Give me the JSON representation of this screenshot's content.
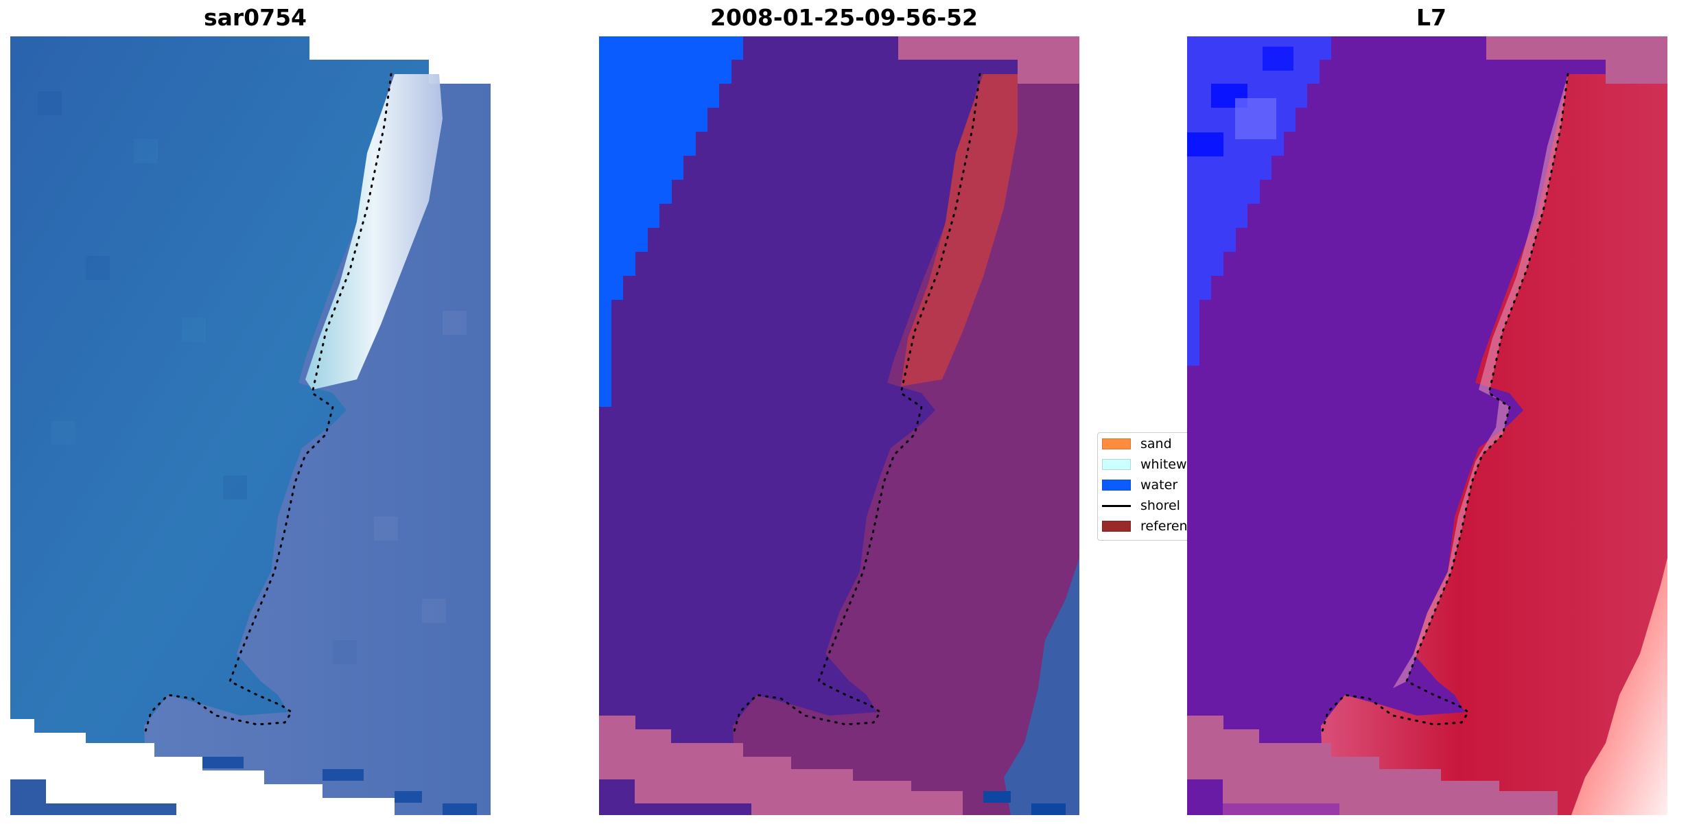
{
  "figure": {
    "panels": [
      {
        "title": "sar0754",
        "kind": "rgb image"
      },
      {
        "title": "2008-01-25-09-56-52",
        "kind": "classified image"
      },
      {
        "title": "L7",
        "kind": "index image"
      }
    ]
  },
  "legend": {
    "items": [
      {
        "label": "sand",
        "color": "#ff8c3c",
        "type": "patch"
      },
      {
        "label": "whitew",
        "color": "#ccffff",
        "type": "patch"
      },
      {
        "label": "water",
        "color": "#0a5cff",
        "type": "patch"
      },
      {
        "label": "shorel",
        "color": "#000000",
        "type": "line"
      },
      {
        "label": "referen",
        "color": "#9a2a2a",
        "type": "patch"
      }
    ]
  },
  "colors": {
    "sea_blue": "#2f6fb6",
    "surf_white": "#e6f4fa",
    "land_violet": "#6f7fbe",
    "class_water": "#0a5cff",
    "class_sand_overlay": "#4f2394",
    "class_land": "#7b2d7a",
    "class_pink": "#b95f94",
    "index_purple": "#6a1ba6",
    "index_blue": "#2a3dff",
    "index_red": "#c8173c"
  }
}
